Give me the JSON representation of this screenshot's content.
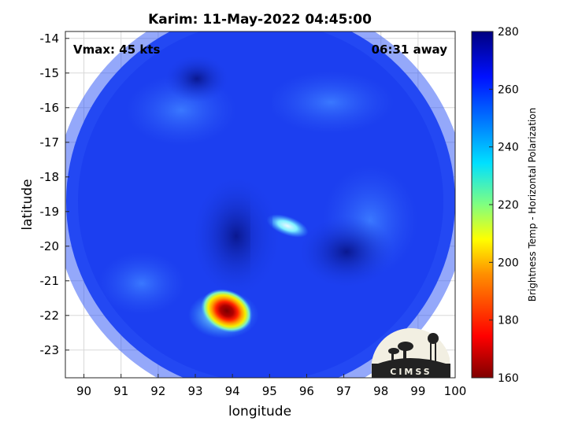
{
  "chart_data": {
    "type": "heatmap",
    "title": "Karim: 11-May-2022 04:45:00",
    "xlabel": "longitude",
    "ylabel": "latitude",
    "xlim": [
      89.5,
      100
    ],
    "ylim": [
      -23.8,
      -13.8
    ],
    "x_ticks": [
      "90",
      "91",
      "92",
      "93",
      "94",
      "95",
      "96",
      "97",
      "98",
      "99",
      "100"
    ],
    "y_ticks": [
      "-14",
      "-15",
      "-16",
      "-17",
      "-18",
      "-19",
      "-20",
      "-21",
      "-22",
      "-23"
    ],
    "grid": true,
    "annotations": {
      "vmax": "Vmax: 45 kts",
      "time_away": "06:31 away"
    },
    "colorbar": {
      "label": "Brightness Temp - Horizontal Polarization",
      "range": [
        160,
        280
      ],
      "ticks": [
        "280",
        "260",
        "240",
        "220",
        "200",
        "180",
        "160"
      ],
      "colormap": "jet"
    },
    "features": [
      {
        "lon": 93.7,
        "lat": -21.7,
        "value": 165,
        "desc": "deep convection core"
      },
      {
        "lon": 95.5,
        "lat": -19.6,
        "value": 230,
        "desc": "light band"
      },
      {
        "lon": 93.5,
        "lat": -19.5,
        "value": 275,
        "desc": "dark eye region"
      }
    ],
    "background_value": 262,
    "logo": "CIMSS"
  },
  "colors": {
    "background_field": "#1c3ff0",
    "core_dark": "#7a0000",
    "core_red": "#e10000",
    "core_orange": "#ff9a00",
    "core_yellow": "#f4f000",
    "cyan": "#3fd5ff",
    "deep_blue": "#0c1fa3"
  }
}
